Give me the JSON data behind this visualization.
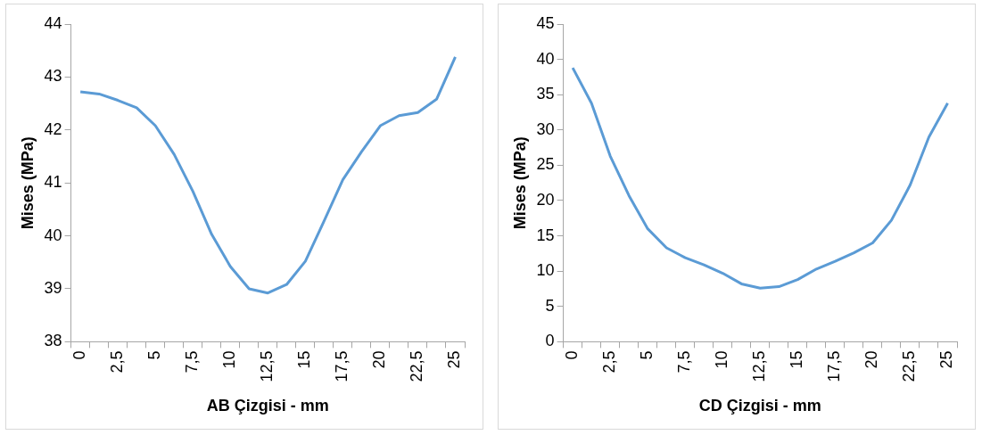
{
  "chart_data": [
    {
      "type": "line",
      "xlabel": "AB Çizgisi - mm",
      "ylabel": "Mises (MPa)",
      "categories": [
        "0",
        null,
        "2,5",
        null,
        "5",
        null,
        "7,5",
        null,
        "10",
        null,
        "12,5",
        null,
        "15",
        null,
        "17,5",
        null,
        "20",
        null,
        "22,5",
        null,
        "25"
      ],
      "series": [
        {
          "color": "#5b9bd5",
          "values": [
            42.72,
            42.68,
            42.56,
            42.42,
            42.08,
            41.54,
            40.84,
            40.03,
            39.42,
            39.0,
            38.92,
            39.08,
            39.52,
            40.28,
            41.06,
            41.59,
            42.08,
            42.27,
            42.33,
            42.58,
            43.38
          ]
        }
      ],
      "ylim": [
        38,
        44
      ],
      "yticks": [
        38,
        39,
        40,
        41,
        42,
        43,
        44
      ],
      "grid": false,
      "legend": false,
      "marker": "none",
      "line_style": "solid"
    },
    {
      "type": "line",
      "xlabel": "CD Çizgisi - mm",
      "ylabel": "Mises (MPa)",
      "categories": [
        "0",
        null,
        "2,5",
        null,
        "5",
        null,
        "7,5",
        null,
        "10",
        null,
        "12,5",
        null,
        "15",
        null,
        "17,5",
        null,
        "20",
        null,
        "22,5",
        null,
        "25"
      ],
      "series": [
        {
          "color": "#5b9bd5",
          "values": [
            38.8,
            33.8,
            26.3,
            20.7,
            16.0,
            13.3,
            11.9,
            10.9,
            9.7,
            8.2,
            7.6,
            7.8,
            8.8,
            10.3,
            11.4,
            12.6,
            14.0,
            17.2,
            22.2,
            29.0,
            33.8
          ]
        }
      ],
      "ylim": [
        0,
        45
      ],
      "yticks": [
        0,
        5,
        10,
        15,
        20,
        25,
        30,
        35,
        40,
        45
      ],
      "grid": false,
      "legend": false,
      "marker": "none",
      "line_style": "solid"
    }
  ]
}
